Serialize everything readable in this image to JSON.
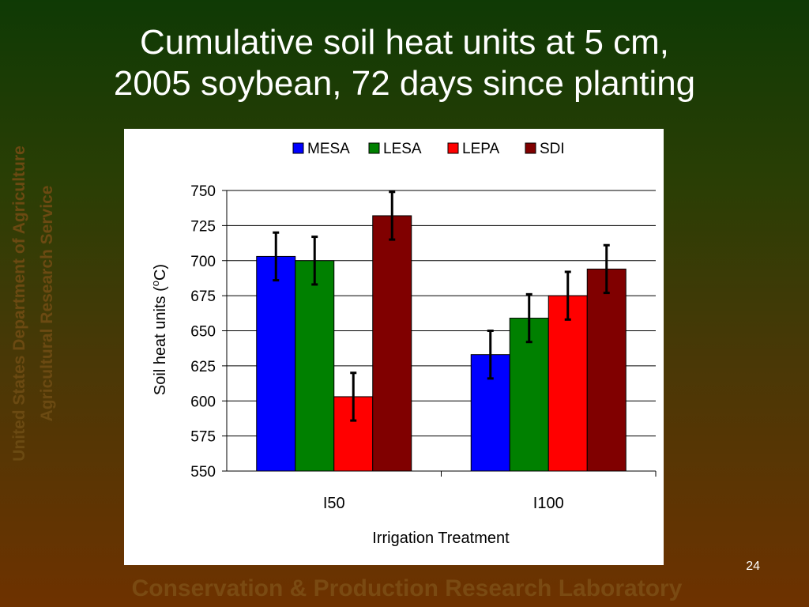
{
  "slide": {
    "title_line1": "Cumulative soil heat units at 5 cm,",
    "title_line2": "2005 soybean, 72 days since planting",
    "side_line1": "United States Department of Agriculture",
    "side_line2": "Agricultural Research Service",
    "footer": "Conservation & Production Research Laboratory",
    "page_number": "24"
  },
  "colors": {
    "MESA": "#0000ff",
    "LESA": "#008000",
    "LEPA": "#ff0000",
    "SDI": "#800000"
  },
  "chart_data": {
    "type": "bar",
    "xlabel": "Irrigation Treatment",
    "ylabel_prefix": "Soil heat units (",
    "ylabel_sup": "o",
    "ylabel_suffix": "C)",
    "ylim": [
      550,
      750
    ],
    "yticks": [
      "550",
      "575",
      "600",
      "625",
      "650",
      "675",
      "700",
      "725",
      "750"
    ],
    "grid": true,
    "legend_position": "top",
    "categories": [
      "I50",
      "I100"
    ],
    "series": [
      {
        "name": "MESA",
        "values": [
          703,
          633
        ],
        "errors": [
          17,
          17
        ]
      },
      {
        "name": "LESA",
        "values": [
          700,
          659
        ],
        "errors": [
          17,
          17
        ]
      },
      {
        "name": "LEPA",
        "values": [
          603,
          675
        ],
        "errors": [
          17,
          17
        ]
      },
      {
        "name": "SDI",
        "values": [
          732,
          694
        ],
        "errors": [
          17,
          17
        ]
      }
    ]
  }
}
